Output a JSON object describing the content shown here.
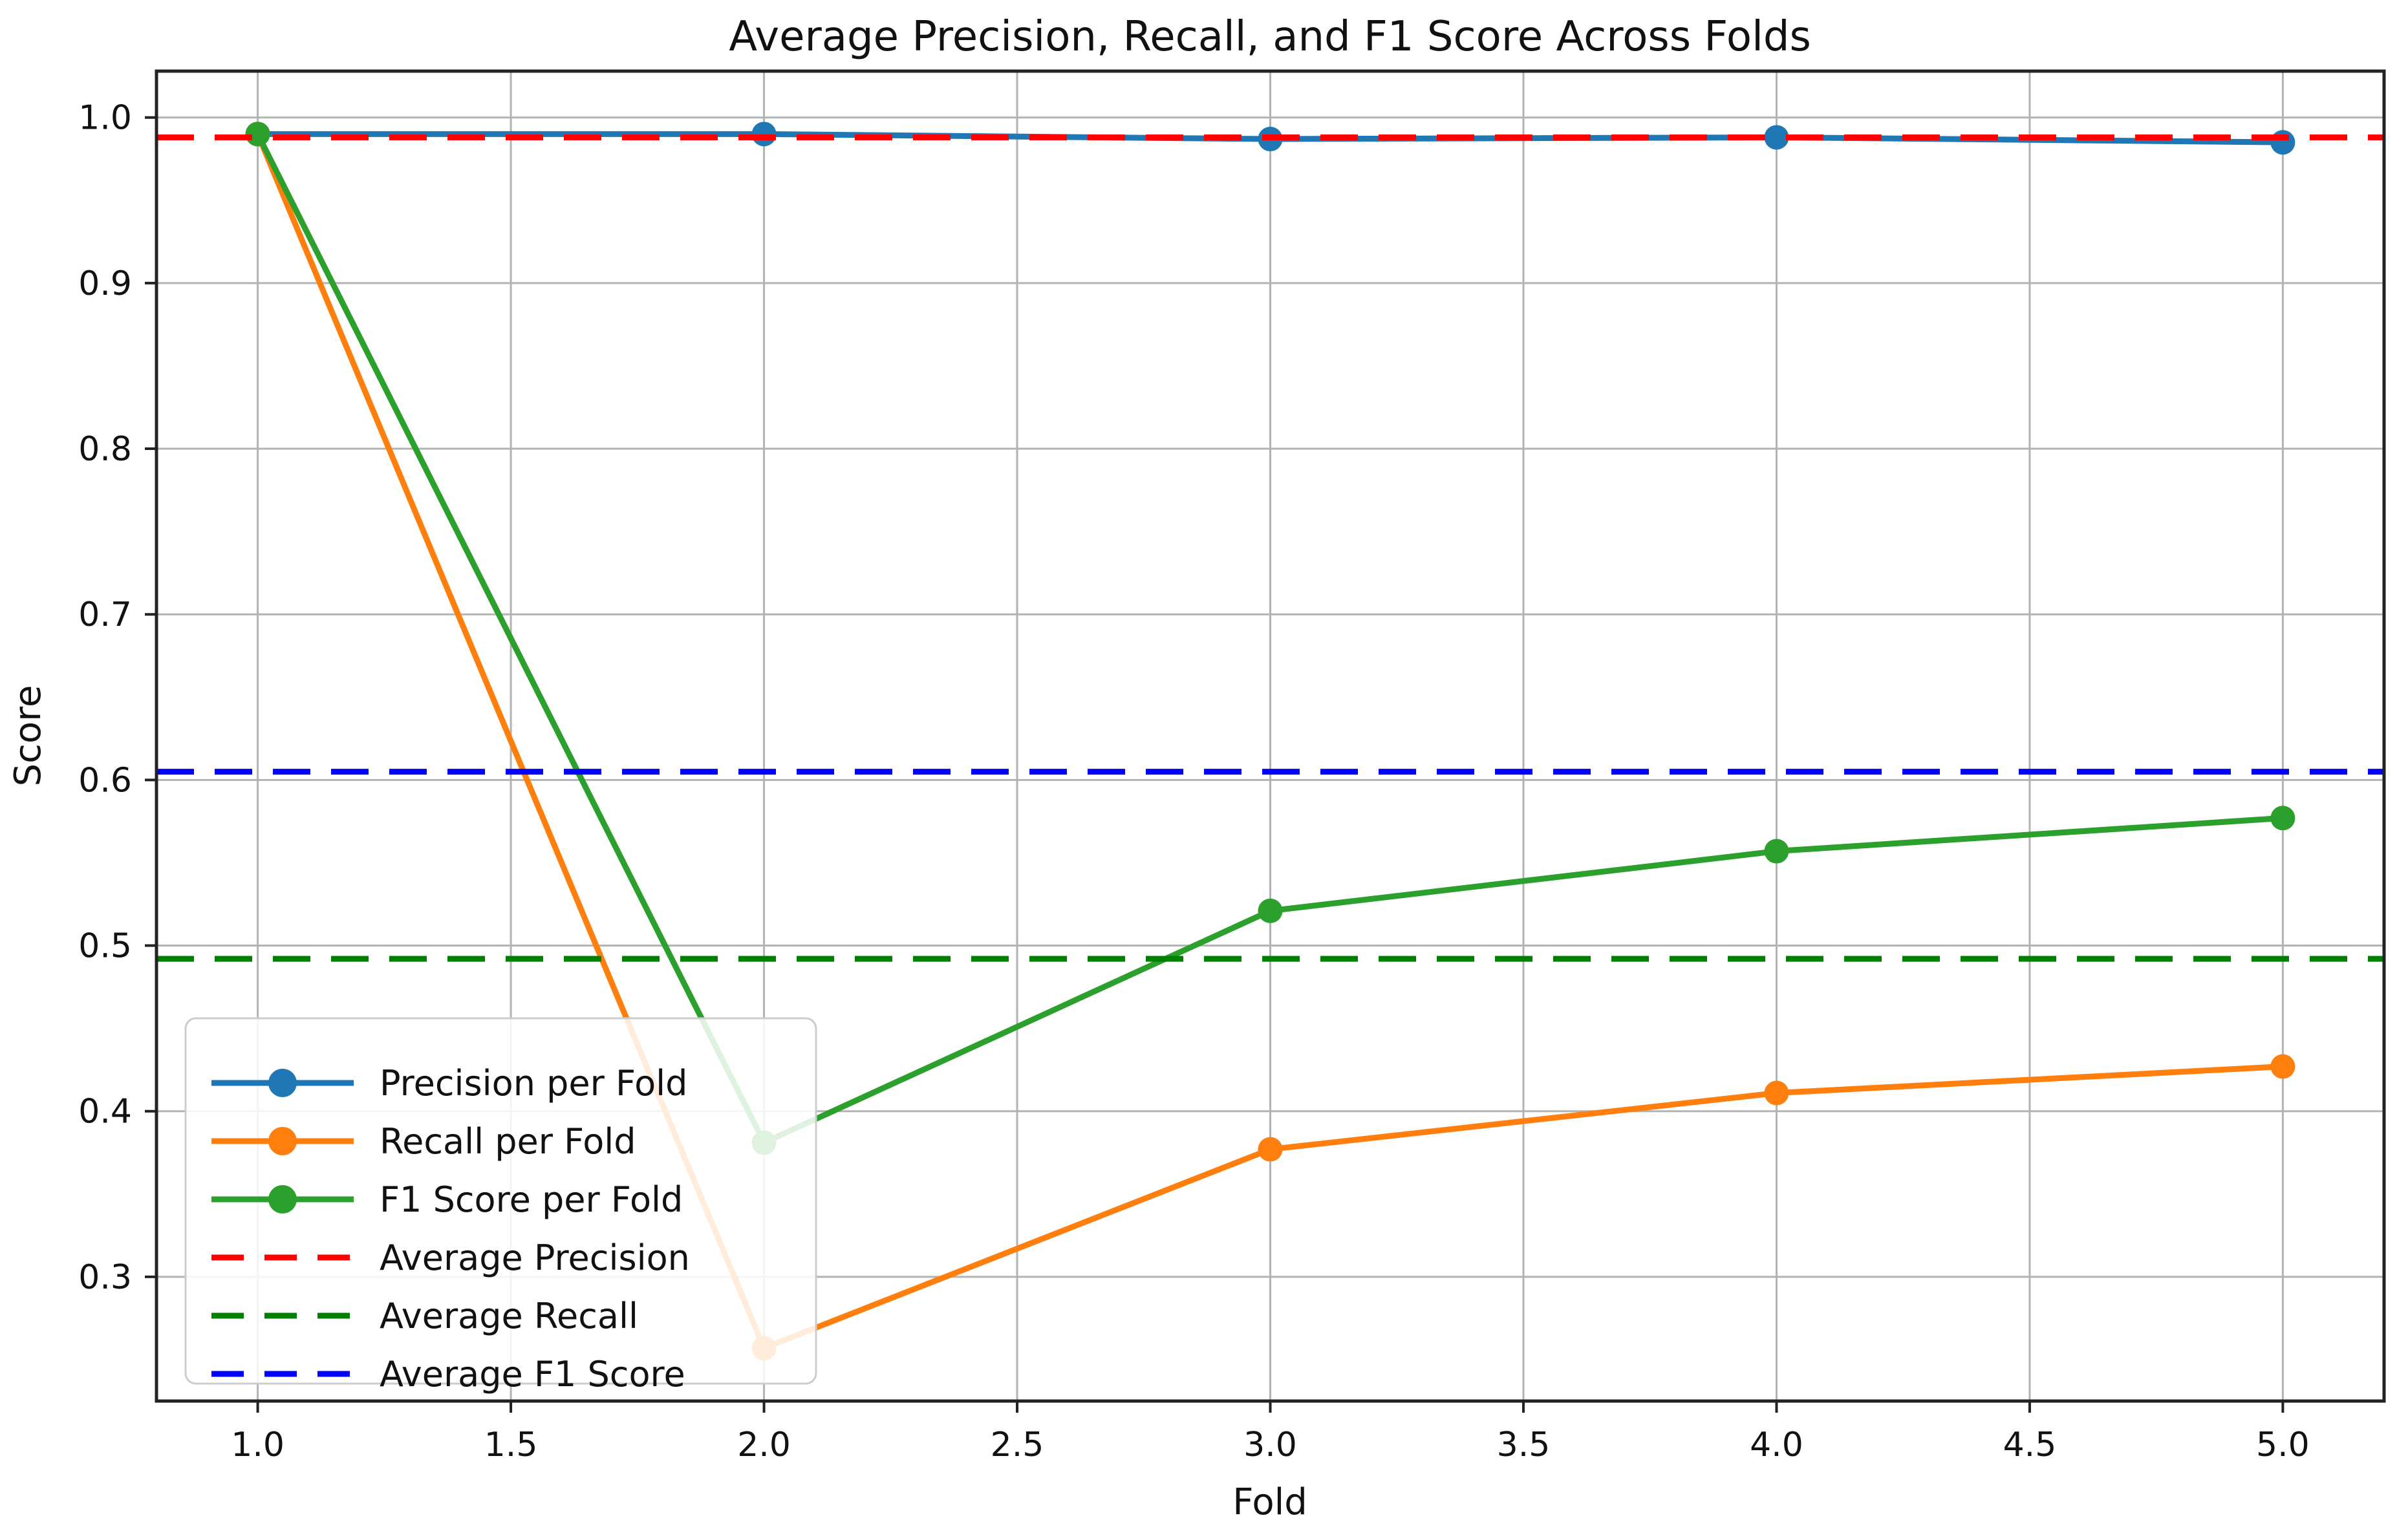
{
  "chart_data": {
    "type": "line",
    "title": "Average Precision, Recall, and F1 Score Across Folds",
    "xlabel": "Fold",
    "ylabel": "Score",
    "x": [
      1,
      2,
      3,
      4,
      5
    ],
    "series": [
      {
        "name": "Precision per Fold",
        "color": "#1f77b4",
        "style": "solid",
        "marker": "circle",
        "values": [
          0.99,
          0.99,
          0.987,
          0.988,
          0.985
        ]
      },
      {
        "name": "Recall per Fold",
        "color": "#ff7f0e",
        "style": "solid",
        "marker": "circle",
        "values": [
          0.99,
          0.257,
          0.377,
          0.411,
          0.427
        ]
      },
      {
        "name": "F1 Score per Fold",
        "color": "#2ca02c",
        "style": "solid",
        "marker": "circle",
        "values": [
          0.99,
          0.381,
          0.521,
          0.557,
          0.577
        ]
      }
    ],
    "avg_lines": [
      {
        "name": "Average Precision",
        "color": "#ff0000",
        "value": 0.988
      },
      {
        "name": "Average Recall",
        "color": "#008000",
        "value": 0.492
      },
      {
        "name": "Average F1 Score",
        "color": "#0000ff",
        "value": 0.605
      }
    ],
    "xlim": [
      0.8,
      5.2
    ],
    "ylim": [
      0.225,
      1.028
    ],
    "xticks": {
      "values": [
        1.0,
        1.5,
        2.0,
        2.5,
        3.0,
        3.5,
        4.0,
        4.5,
        5.0
      ],
      "labels": [
        "1.0",
        "1.5",
        "2.0",
        "2.5",
        "3.0",
        "3.5",
        "4.0",
        "4.5",
        "5.0"
      ]
    },
    "yticks": {
      "values": [
        0.3,
        0.4,
        0.5,
        0.6,
        0.7,
        0.8,
        0.9,
        1.0
      ],
      "labels": [
        "0.3",
        "0.4",
        "0.5",
        "0.6",
        "0.7",
        "0.8",
        "0.9",
        "1.0"
      ]
    },
    "grid": true,
    "legend": {
      "position": "lower left",
      "entries": [
        "Precision per Fold",
        "Recall per Fold",
        "F1 Score per Fold",
        "Average Precision",
        "Average Recall",
        "Average F1 Score"
      ]
    },
    "colors": {
      "grid": "#b3b3b3",
      "spine": "#222222",
      "text": "#111111",
      "legend_border": "#cccccc",
      "background": "#ffffff"
    }
  }
}
